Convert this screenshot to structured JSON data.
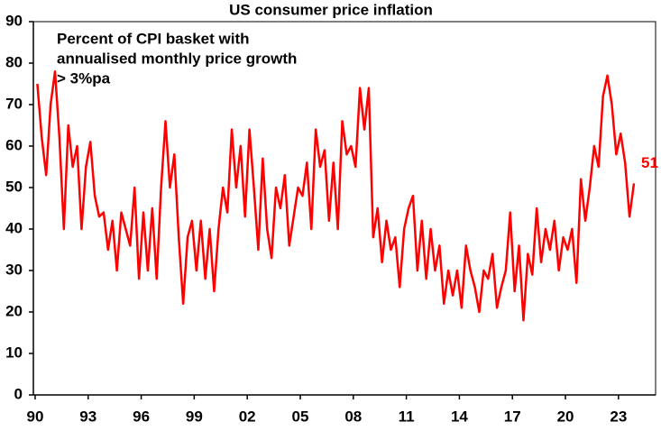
{
  "chart_data": {
    "type": "line",
    "title": "US consumer price inflation",
    "annotation": [
      "Percent of CPI basket with",
      "annualised monthly price growth",
      "> 3%pa"
    ],
    "label_last": true,
    "xlim": [
      1989.9,
      2025.1
    ],
    "ylim": [
      0,
      90
    ],
    "yticks": [
      0,
      10,
      20,
      30,
      40,
      50,
      60,
      70,
      80,
      90
    ],
    "xticks": [
      {
        "value": 1990,
        "label": "90"
      },
      {
        "value": 1993,
        "label": "93"
      },
      {
        "value": 1996,
        "label": "96"
      },
      {
        "value": 1999,
        "label": "99"
      },
      {
        "value": 2002,
        "label": "02"
      },
      {
        "value": 2005,
        "label": "05"
      },
      {
        "value": 2008,
        "label": "08"
      },
      {
        "value": 2011,
        "label": "11"
      },
      {
        "value": 2014,
        "label": "14"
      },
      {
        "value": 2017,
        "label": "17"
      },
      {
        "value": 2020,
        "label": "20"
      },
      {
        "value": 2023,
        "label": "23"
      }
    ],
    "x": [
      1990.125,
      1990.375,
      1990.625,
      1990.875,
      1991.125,
      1991.375,
      1991.625,
      1991.875,
      1992.125,
      1992.375,
      1992.625,
      1992.875,
      1993.125,
      1993.375,
      1993.625,
      1993.875,
      1994.125,
      1994.375,
      1994.625,
      1994.875,
      1995.125,
      1995.375,
      1995.625,
      1995.875,
      1996.125,
      1996.375,
      1996.625,
      1996.875,
      1997.125,
      1997.375,
      1997.625,
      1997.875,
      1998.125,
      1998.375,
      1998.625,
      1998.875,
      1999.125,
      1999.375,
      1999.625,
      1999.875,
      2000.125,
      2000.375,
      2000.625,
      2000.875,
      2001.125,
      2001.375,
      2001.625,
      2001.875,
      2002.125,
      2002.375,
      2002.625,
      2002.875,
      2003.125,
      2003.375,
      2003.625,
      2003.875,
      2004.125,
      2004.375,
      2004.625,
      2004.875,
      2005.125,
      2005.375,
      2005.625,
      2005.875,
      2006.125,
      2006.375,
      2006.625,
      2006.875,
      2007.125,
      2007.375,
      2007.625,
      2007.875,
      2008.125,
      2008.375,
      2008.625,
      2008.875,
      2009.125,
      2009.375,
      2009.625,
      2009.875,
      2010.125,
      2010.375,
      2010.625,
      2010.875,
      2011.125,
      2011.375,
      2011.625,
      2011.875,
      2012.125,
      2012.375,
      2012.625,
      2012.875,
      2013.125,
      2013.375,
      2013.625,
      2013.875,
      2014.125,
      2014.375,
      2014.625,
      2014.875,
      2015.125,
      2015.375,
      2015.625,
      2015.875,
      2016.125,
      2016.375,
      2016.625,
      2016.875,
      2017.125,
      2017.375,
      2017.625,
      2017.875,
      2018.125,
      2018.375,
      2018.625,
      2018.875,
      2019.125,
      2019.375,
      2019.625,
      2019.875,
      2020.125,
      2020.375,
      2020.625,
      2020.875,
      2021.125,
      2021.375,
      2021.625,
      2021.875,
      2022.125,
      2022.375,
      2022.625,
      2022.875,
      2023.125,
      2023.375,
      2023.625,
      2023.875
    ],
    "series": [
      {
        "color": "#ff0000",
        "values": [
          75,
          62,
          53,
          70,
          78,
          62,
          40,
          65,
          55,
          60,
          40,
          55,
          61,
          48,
          43,
          44,
          35,
          42,
          30,
          44,
          40,
          36,
          50,
          28,
          44,
          30,
          45,
          28,
          50,
          66,
          50,
          58,
          38,
          22,
          38,
          42,
          30,
          42,
          28,
          40,
          25,
          40,
          50,
          44,
          64,
          50,
          60,
          43,
          64,
          50,
          35,
          57,
          40,
          33,
          50,
          45,
          53,
          36,
          43,
          50,
          48,
          56,
          40,
          64,
          55,
          59,
          42,
          56,
          40,
          66,
          58,
          60,
          55,
          74,
          64,
          74,
          38,
          45,
          32,
          42,
          35,
          38,
          26,
          40,
          45,
          48,
          30,
          42,
          28,
          40,
          30,
          36,
          22,
          30,
          24,
          30,
          21,
          36,
          30,
          26,
          20,
          30,
          28,
          34,
          21,
          26,
          30,
          44,
          25,
          36,
          18,
          34,
          29,
          45,
          32,
          40,
          35,
          42,
          30,
          38,
          35,
          40,
          27,
          52,
          42,
          50,
          60,
          55,
          72,
          77,
          70,
          58,
          63,
          56,
          43,
          51
        ]
      }
    ]
  }
}
